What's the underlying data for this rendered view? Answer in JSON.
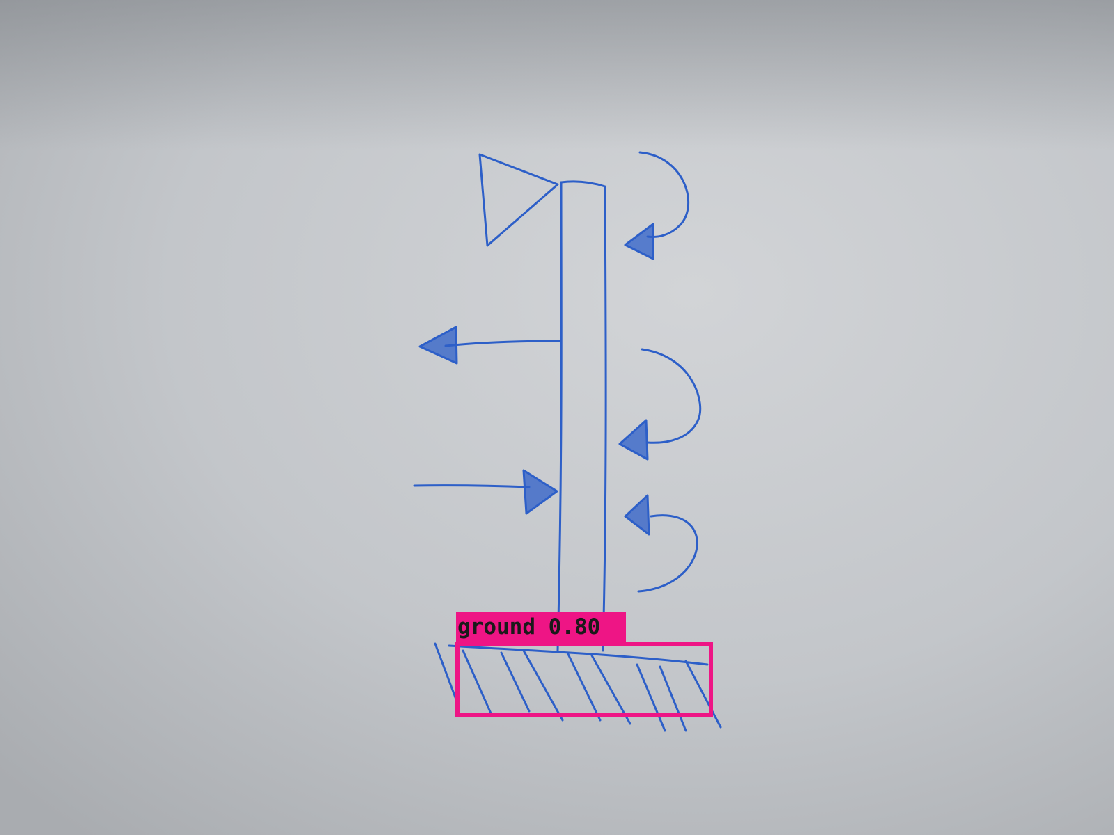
{
  "detection": {
    "class_name": "ground",
    "score": "0.80",
    "box_color": "#ee1585"
  },
  "sketch": {
    "ink_color": "#2d5fc8",
    "paper_color": "#c6c9cd"
  }
}
